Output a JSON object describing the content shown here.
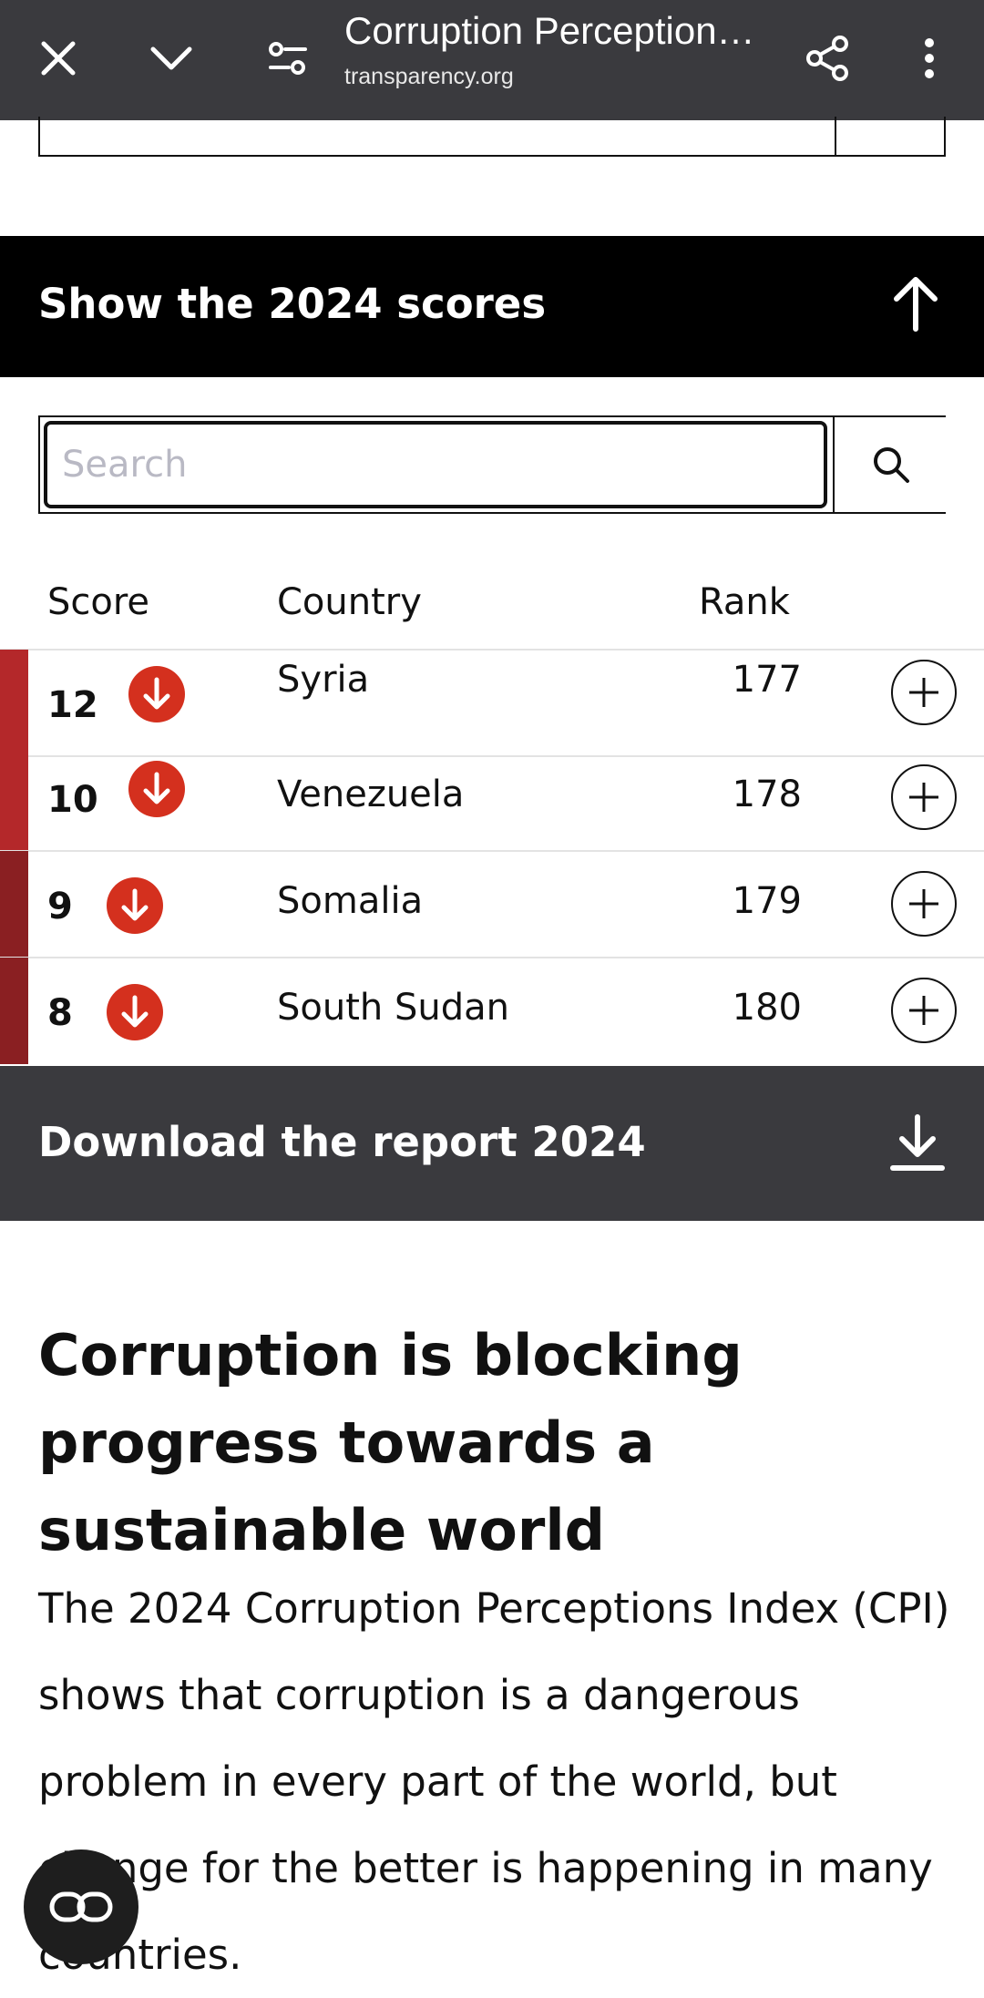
{
  "browser": {
    "title": "Corruption Perception…",
    "url": "transparency.org",
    "icons": [
      "close-icon",
      "chevron-down-icon",
      "tune-icon",
      "share-icon",
      "more-vert-icon"
    ]
  },
  "scores_bar": {
    "label": "Show the 2024 scores",
    "icon": "arrow-up-icon"
  },
  "search": {
    "placeholder": "Search",
    "value": "",
    "icon": "search-icon"
  },
  "table": {
    "headers": {
      "score": "Score",
      "country": "Country",
      "rank": "Rank"
    },
    "rows": [
      {
        "score": "12",
        "country": "Syria",
        "rank": "177",
        "trend": "down"
      },
      {
        "score": "10",
        "country": "Venezuela",
        "rank": "178",
        "trend": "down"
      },
      {
        "score": "9",
        "country": "Somalia",
        "rank": "179",
        "trend": "down"
      },
      {
        "score": "8",
        "country": "South Sudan",
        "rank": "180",
        "trend": "down"
      }
    ],
    "colors": {
      "stripe_12_10": "#b4282a",
      "stripe_9_8": "#8a1f22",
      "trend": "#d4301e"
    }
  },
  "download_bar": {
    "label": "Download the report 2024",
    "icon": "download-icon"
  },
  "article": {
    "headline": "Corruption is blocking progress towards a sustainable world",
    "paragraph": "The 2024 Corruption Perceptions Index (CPI) shows that corruption is a dangerous problem in every part of the world, but change for the better is happening in many countries."
  },
  "fab": {
    "icon": "reader-mode-icon"
  }
}
